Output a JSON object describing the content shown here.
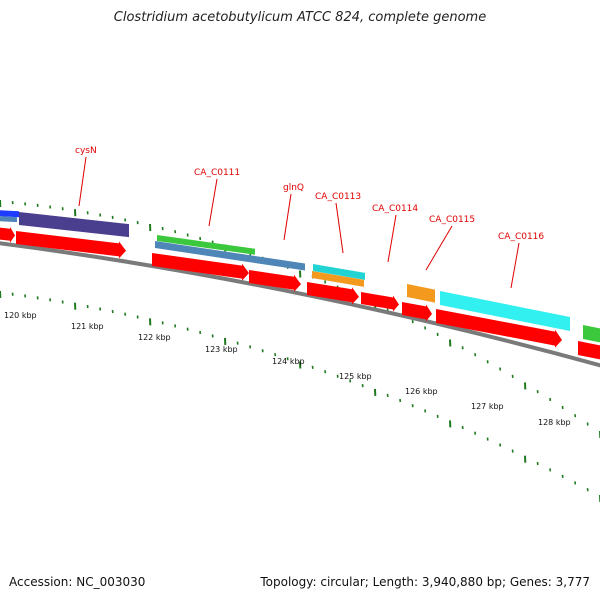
{
  "title": "Clostridium acetobutylicum ATCC 824, complete genome",
  "footer": {
    "accession": "Accession: NC_003030",
    "summary": "Topology: circular; Length: 3,940,880 bp; Genes: 3,777"
  },
  "scale_labels": [
    "120 kbp",
    "121 kbp",
    "122 kbp",
    "123 kbp",
    "124 kbp",
    "125 kbp",
    "126 kbp",
    "127 kbp",
    "128 kbp"
  ],
  "gene_labels": [
    "cysN",
    "CA_C0111",
    "glnQ",
    "CA_C0113",
    "CA_C0114",
    "CA_C0115",
    "CA_C0116"
  ],
  "colors": {
    "backbone": "#7a7a7a",
    "cds_arrow": "#ff0000",
    "label_text": "#e00000",
    "tick": "#1f7a1f",
    "feature_blue": "#1e3cff",
    "feature_navy": "#4a3f8f",
    "feature_green": "#3cc83c",
    "feature_steelblue": "#4f86b8",
    "feature_cyan": "#22d3d3",
    "feature_orange": "#f39a1e",
    "feature_aqua": "#33f0f0"
  }
}
